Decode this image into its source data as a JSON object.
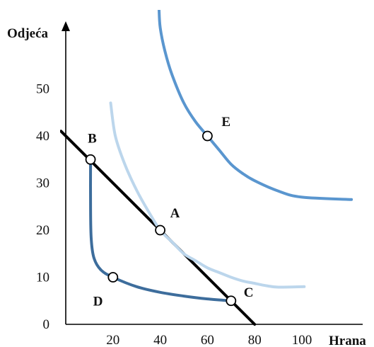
{
  "chart_data": {
    "type": "line",
    "xlabel": "Hrana",
    "ylabel": "Odjeća",
    "xlim": [
      -2,
      102
    ],
    "ylim": [
      -2,
      67
    ],
    "x_ticks": [
      20,
      40,
      60,
      80,
      100
    ],
    "y_ticks": [
      0,
      10,
      20,
      30,
      40,
      50
    ],
    "x_tick_labels": [
      "20",
      "40",
      "60",
      "80",
      "100"
    ],
    "y_tick_labels": [
      "0",
      "10",
      "20",
      "30",
      "40",
      "50"
    ],
    "grid": false,
    "series": [
      {
        "kind": "budget_line",
        "color": "#000000",
        "x": [
          -2,
          80
        ],
        "y": [
          41,
          0
        ]
      },
      {
        "kind": "indifference_curve",
        "color": "#bcd6ec",
        "x": [
          19,
          21,
          25,
          30,
          35,
          40,
          45,
          50,
          55,
          60,
          65,
          70,
          75,
          80,
          85,
          90,
          101
        ],
        "y": [
          47,
          40,
          34,
          28.5,
          24,
          20,
          17.5,
          15,
          13.5,
          12,
          11,
          10,
          9.2,
          8.7,
          8.2,
          7.9,
          8
        ]
      },
      {
        "kind": "indifference_curve",
        "color": "#5a96cf",
        "x": [
          39.5,
          40,
          42,
          45,
          50,
          55,
          60,
          65,
          70,
          75,
          80,
          90,
          100,
          121
        ],
        "y": [
          67,
          63,
          58,
          53,
          47,
          43,
          40,
          37,
          34,
          32,
          30.5,
          28.3,
          27,
          26.5
        ]
      },
      {
        "kind": "indifference_curve",
        "color": "#3d6d9c",
        "x": [
          10.5,
          10.5,
          10.8,
          12,
          15,
          20,
          30,
          40,
          50,
          60,
          70
        ],
        "y": [
          35,
          25,
          18,
          14,
          11.5,
          10,
          8,
          6.8,
          6,
          5.4,
          5
        ]
      }
    ],
    "points": [
      {
        "label": "A",
        "x": 40,
        "y": 20
      },
      {
        "label": "B",
        "x": 10.5,
        "y": 35
      },
      {
        "label": "C",
        "x": 70,
        "y": 5
      },
      {
        "label": "D",
        "x": 20,
        "y": 10
      },
      {
        "label": "E",
        "x": 60,
        "y": 40
      }
    ]
  }
}
